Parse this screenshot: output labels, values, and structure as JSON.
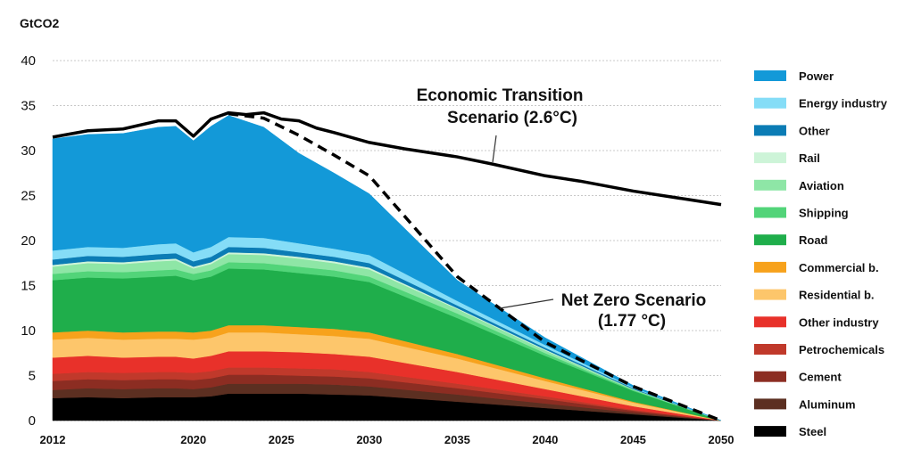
{
  "chart_data": {
    "type": "area",
    "ylabel": "GtCO2",
    "ylim": [
      0,
      40
    ],
    "yticks": [
      0,
      5,
      10,
      15,
      20,
      25,
      30,
      35,
      40
    ],
    "xlim": [
      2012,
      2050
    ],
    "xticks": [
      2012,
      2020,
      2025,
      2030,
      2035,
      2040,
      2045,
      2050
    ],
    "grid": true,
    "legend_position": "right",
    "x": [
      2012,
      2014,
      2016,
      2018,
      2019,
      2020,
      2021,
      2022,
      2024,
      2026,
      2028,
      2030,
      2035,
      2040,
      2045,
      2050
    ],
    "series": [
      {
        "name": "Steel",
        "color": "#000000",
        "values": [
          2.5,
          2.6,
          2.5,
          2.6,
          2.6,
          2.6,
          2.7,
          3.0,
          3.0,
          3.0,
          2.9,
          2.8,
          2.1,
          1.4,
          0.7,
          0.0
        ]
      },
      {
        "name": "Aluminum",
        "color": "#5c2f21",
        "values": [
          0.9,
          1.0,
          1.0,
          1.0,
          1.0,
          0.9,
          1.0,
          1.1,
          1.1,
          1.1,
          1.1,
          1.0,
          0.8,
          0.5,
          0.2,
          0.0
        ]
      },
      {
        "name": "Cement",
        "color": "#8c2d22",
        "values": [
          1.0,
          1.0,
          1.0,
          1.0,
          1.0,
          1.0,
          1.0,
          1.0,
          1.0,
          0.9,
          0.9,
          0.9,
          0.7,
          0.5,
          0.2,
          0.0
        ]
      },
      {
        "name": "Petrochemicals",
        "color": "#c0392b",
        "values": [
          0.8,
          0.8,
          0.8,
          0.8,
          0.8,
          0.8,
          0.8,
          0.8,
          0.8,
          0.8,
          0.8,
          0.7,
          0.5,
          0.3,
          0.1,
          0.0
        ]
      },
      {
        "name": "Other industry",
        "color": "#e8312a",
        "values": [
          1.8,
          1.8,
          1.7,
          1.7,
          1.7,
          1.6,
          1.7,
          1.8,
          1.8,
          1.8,
          1.7,
          1.7,
          1.3,
          0.8,
          0.4,
          0.0
        ]
      },
      {
        "name": "Residential b.",
        "color": "#fdc66b",
        "values": [
          2.0,
          2.0,
          2.0,
          2.0,
          2.0,
          2.1,
          2.0,
          2.1,
          2.1,
          2.0,
          2.0,
          2.0,
          1.5,
          0.9,
          0.4,
          0.0
        ]
      },
      {
        "name": "Commercial b.",
        "color": "#f7a21c",
        "values": [
          0.8,
          0.8,
          0.8,
          0.8,
          0.8,
          0.8,
          0.8,
          0.8,
          0.8,
          0.8,
          0.8,
          0.7,
          0.5,
          0.3,
          0.1,
          0.0
        ]
      },
      {
        "name": "Road",
        "color": "#1fae4b",
        "values": [
          5.8,
          5.9,
          6.0,
          6.1,
          6.2,
          5.8,
          6.0,
          6.3,
          6.2,
          6.0,
          5.8,
          5.6,
          4.0,
          2.5,
          1.2,
          0.0
        ]
      },
      {
        "name": "Shipping",
        "color": "#52d479",
        "values": [
          0.7,
          0.7,
          0.7,
          0.7,
          0.7,
          0.7,
          0.7,
          0.7,
          0.7,
          0.7,
          0.7,
          0.6,
          0.5,
          0.3,
          0.1,
          0.0
        ]
      },
      {
        "name": "Aviation",
        "color": "#8ee6a6",
        "values": [
          0.8,
          0.9,
          0.9,
          1.0,
          1.0,
          0.6,
          0.7,
          0.9,
          0.9,
          0.9,
          0.8,
          0.8,
          0.5,
          0.3,
          0.1,
          0.0
        ]
      },
      {
        "name": "Rail",
        "color": "#cdf4d8",
        "values": [
          0.2,
          0.2,
          0.2,
          0.2,
          0.2,
          0.2,
          0.2,
          0.2,
          0.2,
          0.2,
          0.2,
          0.2,
          0.1,
          0.1,
          0.0,
          0.0
        ]
      },
      {
        "name": "Other",
        "color": "#0b7cb5",
        "values": [
          0.6,
          0.6,
          0.6,
          0.6,
          0.6,
          0.6,
          0.6,
          0.6,
          0.6,
          0.5,
          0.5,
          0.5,
          0.3,
          0.2,
          0.1,
          0.0
        ]
      },
      {
        "name": "Energy industry",
        "color": "#85ddf7",
        "values": [
          1.0,
          1.0,
          1.0,
          1.1,
          1.1,
          1.0,
          1.1,
          1.1,
          1.1,
          1.0,
          0.9,
          0.9,
          0.5,
          0.3,
          0.1,
          0.0
        ]
      },
      {
        "name": "Power",
        "color": "#1399d8",
        "values": [
          12.4,
          12.5,
          12.7,
          13.0,
          13.0,
          12.4,
          13.4,
          13.5,
          12.3,
          10.0,
          8.4,
          6.8,
          2.3,
          0.8,
          0.2,
          0.0
        ]
      }
    ],
    "net_zero_total": {
      "name": "Net Zero Scenario (1.77 °C)",
      "values": [
        31.3,
        31.8,
        31.9,
        32.6,
        32.7,
        31.1,
        32.7,
        34.1,
        33.6,
        31.7,
        29.5,
        27.2,
        16.0,
        8.7,
        3.8,
        0.0
      ]
    },
    "economic_transition": {
      "name": "Economic Transition Scenario (2.6°C)",
      "x": [
        2012,
        2014,
        2016,
        2018,
        2019,
        2020,
        2021,
        2022,
        2023,
        2024,
        2025,
        2026,
        2027,
        2028,
        2030,
        2032,
        2035,
        2037,
        2040,
        2042,
        2045,
        2048,
        2050
      ],
      "values": [
        31.5,
        32.2,
        32.4,
        33.3,
        33.3,
        31.6,
        33.5,
        34.2,
        34.0,
        34.2,
        33.5,
        33.3,
        32.5,
        32.0,
        30.9,
        30.2,
        29.3,
        28.5,
        27.2,
        26.6,
        25.5,
        24.6,
        24.0
      ]
    },
    "annotations": {
      "economic_line1": "Economic Transition",
      "economic_line2": "Scenario (2.6°C)",
      "netzero_line1": "Net Zero Scenario",
      "netzero_line2": "(1.77 °C)"
    },
    "legend_order": [
      "Power",
      "Energy industry",
      "Other",
      "Rail",
      "Aviation",
      "Shipping",
      "Road",
      "Commercial b.",
      "Residential b.",
      "Other industry",
      "Petrochemicals",
      "Cement",
      "Aluminum",
      "Steel"
    ]
  }
}
